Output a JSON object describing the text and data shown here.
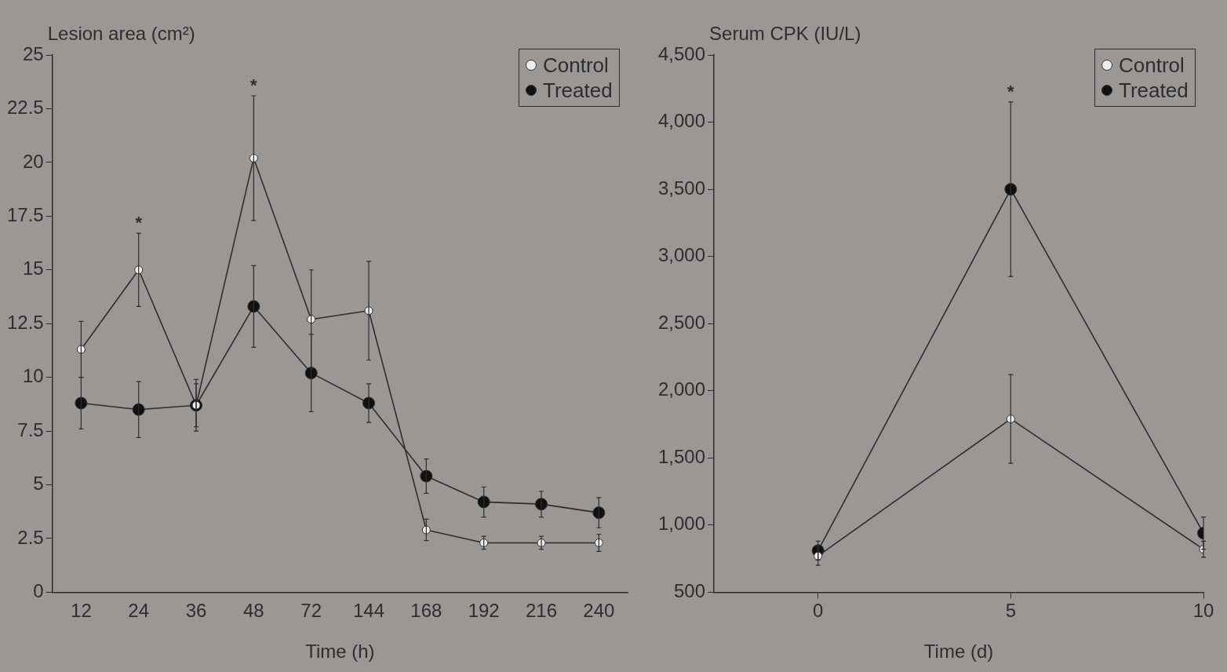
{
  "chart_data": [
    {
      "type": "line",
      "xlabel": "Time (h)",
      "ylabel": "Lesion area (cm²)",
      "categories": [
        "12",
        "24",
        "36",
        "48",
        "72",
        "144",
        "168",
        "192",
        "216",
        "240"
      ],
      "series": [
        {
          "name": "Control",
          "color": "#ebebeb",
          "values": [
            11.3,
            15.0,
            8.7,
            20.2,
            12.7,
            13.1,
            2.9,
            2.3,
            2.3,
            2.3
          ],
          "errors": [
            1.3,
            1.7,
            1.0,
            2.9,
            2.3,
            2.3,
            0.5,
            0.3,
            0.3,
            0.4
          ]
        },
        {
          "name": "Treated",
          "color": "#111111",
          "values": [
            8.8,
            8.5,
            8.7,
            13.3,
            10.2,
            8.8,
            5.4,
            4.2,
            4.1,
            3.7
          ],
          "errors": [
            1.2,
            1.3,
            1.2,
            1.9,
            1.8,
            0.9,
            0.8,
            0.7,
            0.6,
            0.7
          ]
        }
      ],
      "ylim": [
        0,
        25
      ],
      "yticks": [
        0,
        2.5,
        5,
        7.5,
        10,
        12.5,
        15,
        17.5,
        20,
        22.5,
        25
      ],
      "grid": false,
      "legend": "top right",
      "marker": "circle",
      "annotations": [
        {
          "text": "*",
          "x": "24",
          "y": 15.0
        },
        {
          "text": "*",
          "x": "48",
          "y": 23.1
        }
      ]
    },
    {
      "type": "line",
      "xlabel": "Time (d)",
      "ylabel": "Serum CPK (IU/L)",
      "x": [
        0,
        5,
        10
      ],
      "series": [
        {
          "name": "Control",
          "color": "#ebebeb",
          "values": [
            770,
            1790,
            820
          ],
          "errors": [
            70,
            330,
            60
          ]
        },
        {
          "name": "Treated",
          "color": "#111111",
          "values": [
            810,
            3500,
            940
          ],
          "errors": [
            70,
            650,
            120
          ]
        }
      ],
      "xlim": [
        -2.7,
        10
      ],
      "xticks": [
        0,
        5,
        10
      ],
      "ylim": [
        500,
        4500
      ],
      "yticks": [
        {
          "value": 500,
          "label": "500"
        },
        {
          "value": 1000,
          "label": "1,000"
        },
        {
          "value": 1500,
          "label": "1,500"
        },
        {
          "value": 2000,
          "label": "2,000"
        },
        {
          "value": 2500,
          "label": "2,500"
        },
        {
          "value": 3000,
          "label": "3,000"
        },
        {
          "value": 3500,
          "label": "3,500"
        },
        {
          "value": 4000,
          "label": "4,000"
        },
        {
          "value": 4500,
          "label": "4,500"
        }
      ],
      "grid": false,
      "legend": "top right",
      "marker": "circle",
      "annotations": [
        {
          "text": "*",
          "x": 5,
          "y": 4150
        }
      ]
    }
  ]
}
